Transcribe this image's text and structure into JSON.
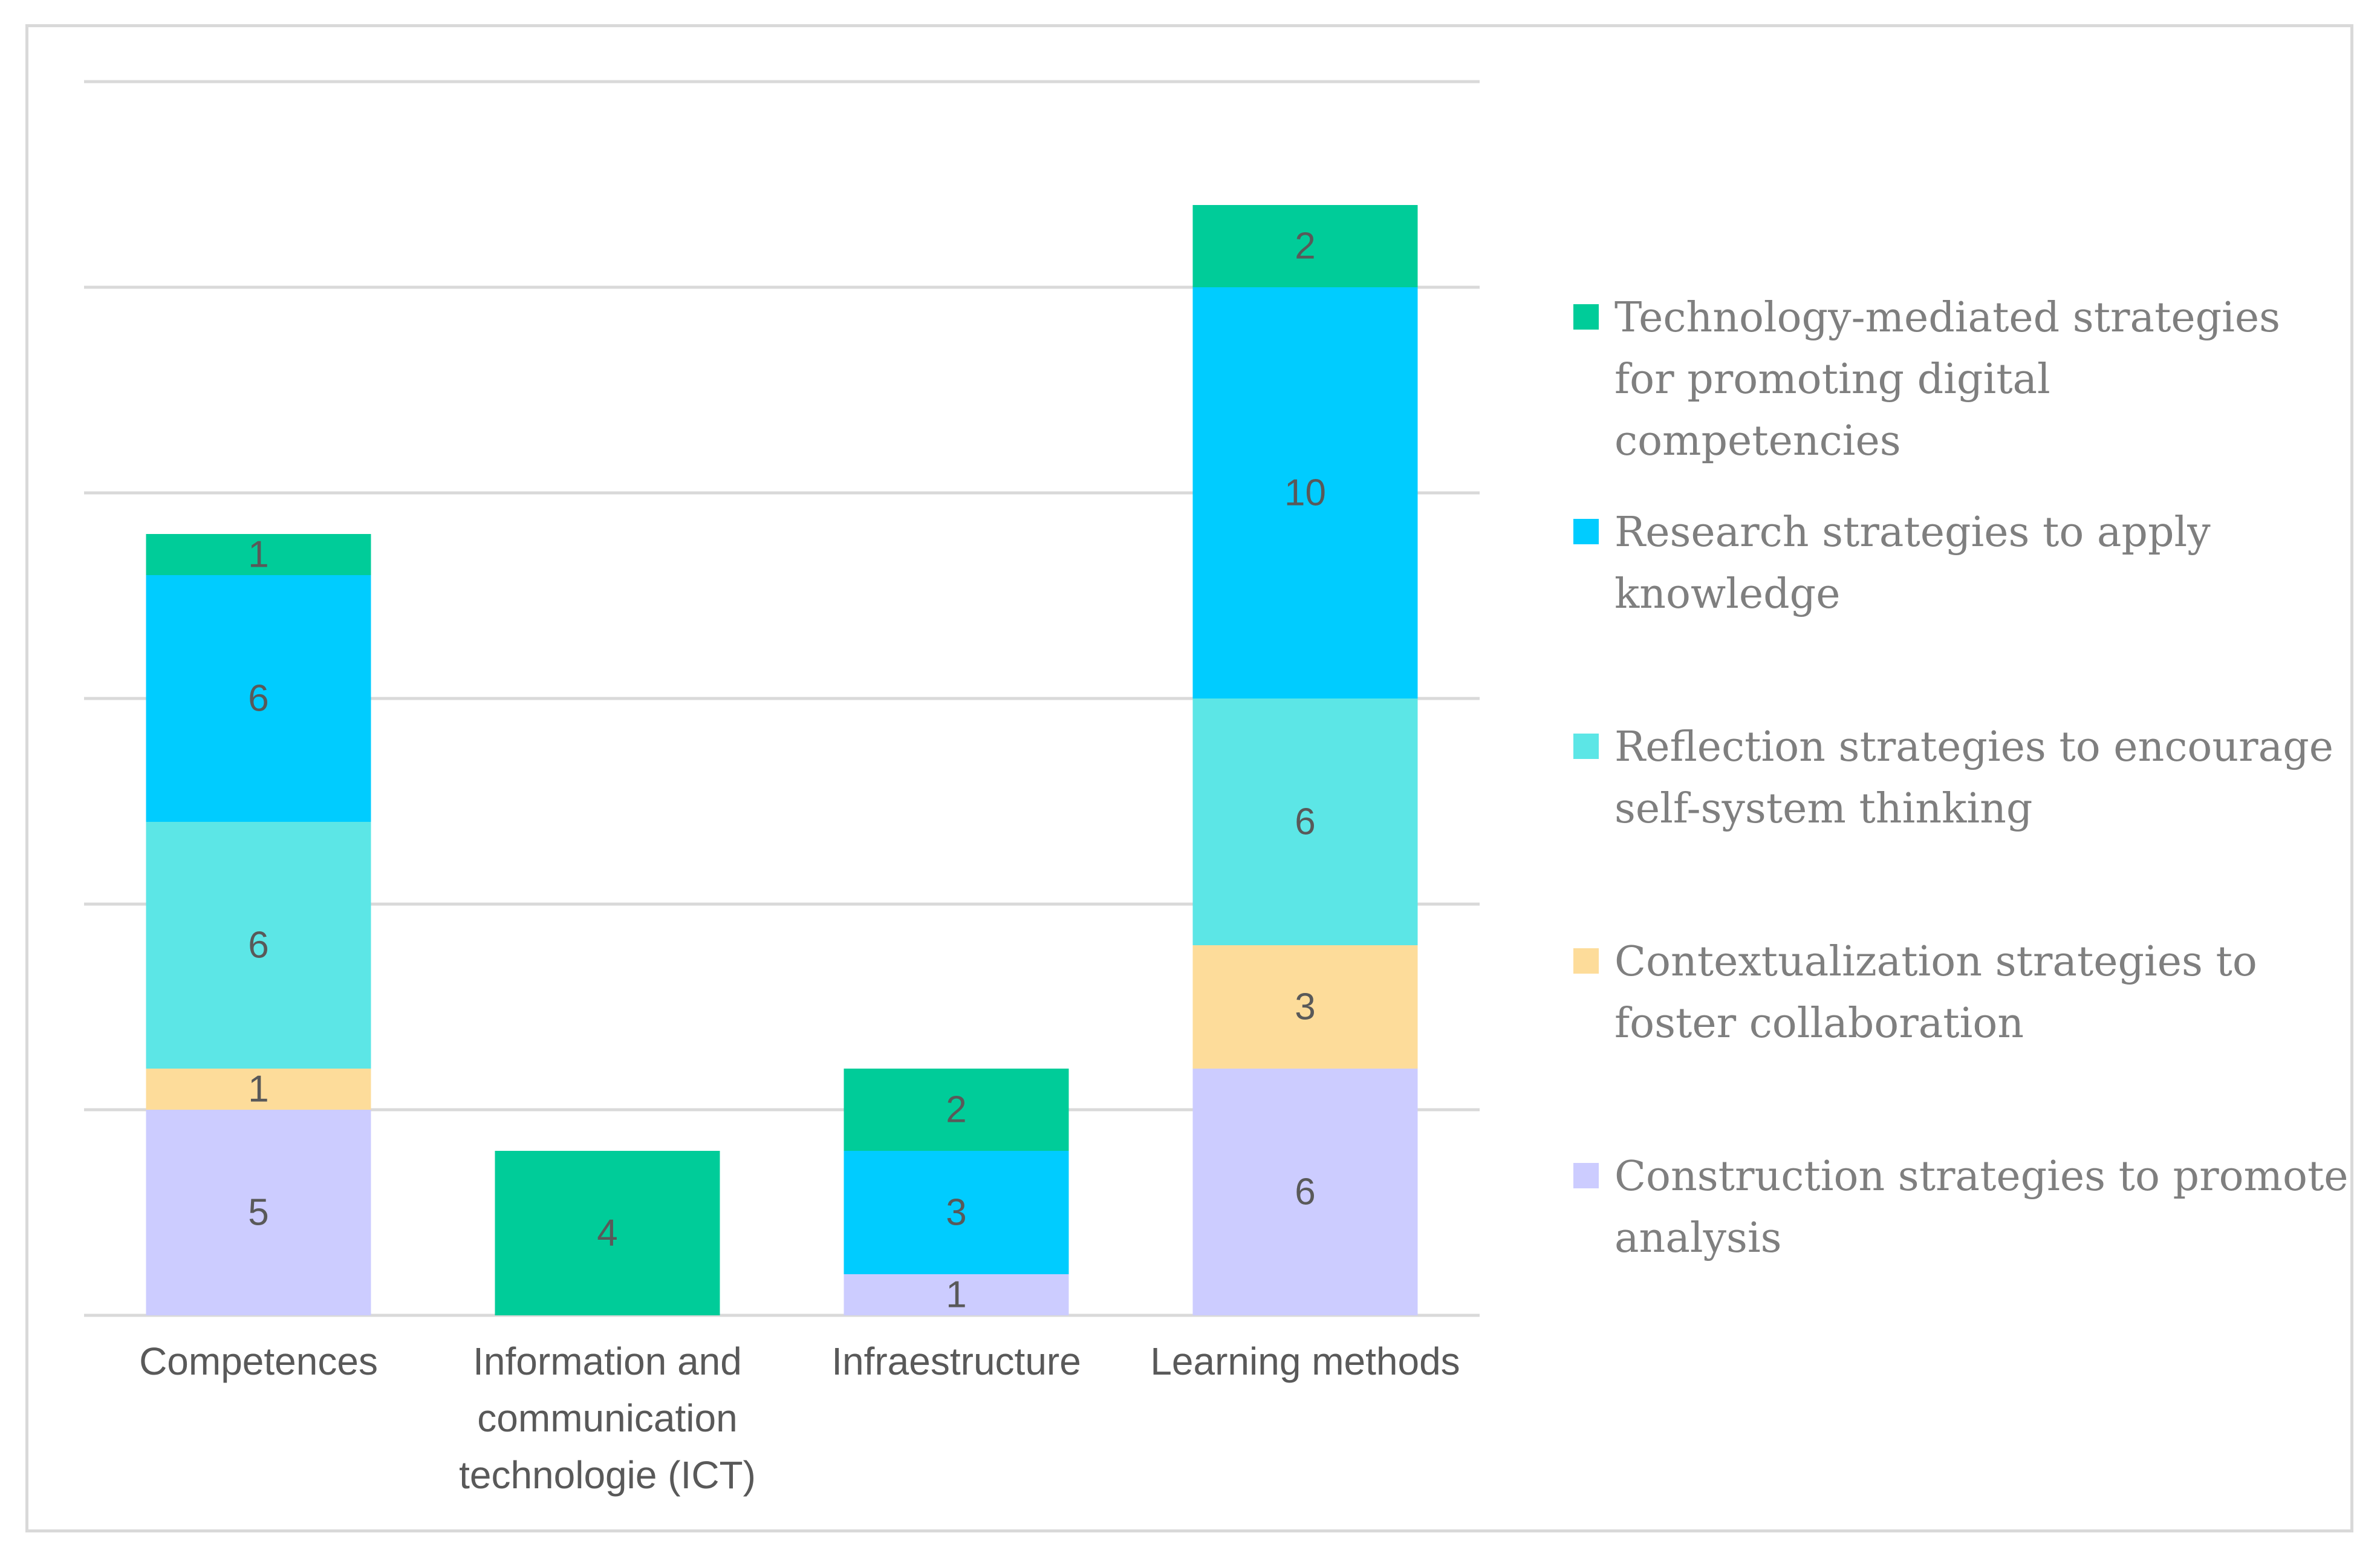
{
  "chart_data": {
    "type": "bar",
    "stacked": true,
    "categories": [
      [
        "Competences"
      ],
      [
        "Information and",
        "communication",
        "technologie (ICT)"
      ],
      [
        "Infraestructure"
      ],
      [
        "Learning methods"
      ]
    ],
    "series": [
      {
        "name": "Construction strategies to promote analysis",
        "color": "#ccccff",
        "values": [
          5,
          0,
          1,
          6
        ]
      },
      {
        "name": "Contextualization strategies to foster collaboration",
        "color": "#fddc9a",
        "values": [
          1,
          0,
          0,
          3
        ]
      },
      {
        "name": "Reflection strategies to encourage self-system thinking",
        "color": "#5ce6e6",
        "values": [
          6,
          0,
          0,
          6
        ]
      },
      {
        "name": "Research strategies to apply knowledge",
        "color": "#00ccff",
        "values": [
          6,
          0,
          3,
          10
        ]
      },
      {
        "name": "Technology-mediated strategies for promoting digital competencies",
        "color": "#00cc99",
        "values": [
          1,
          4,
          2,
          2
        ]
      }
    ],
    "ylim": [
      0,
      30
    ],
    "gridline_step": 5,
    "grid": true,
    "legend_position": "right",
    "title": "",
    "xlabel": "",
    "ylabel": ""
  },
  "legend": {
    "items": [
      {
        "series_index": 4,
        "lines": [
          "Technology-mediated strategies",
          "for promoting digital",
          "competencies"
        ]
      },
      {
        "series_index": 3,
        "lines": [
          "Research strategies to apply",
          "knowledge"
        ]
      },
      {
        "series_index": 2,
        "lines": [
          "Reflection strategies to encourage",
          "self-system thinking"
        ]
      },
      {
        "series_index": 1,
        "lines": [
          "Contextualization strategies to",
          "foster collaboration"
        ]
      },
      {
        "series_index": 0,
        "lines": [
          "Construction strategies to promote",
          "analysis"
        ]
      }
    ]
  }
}
